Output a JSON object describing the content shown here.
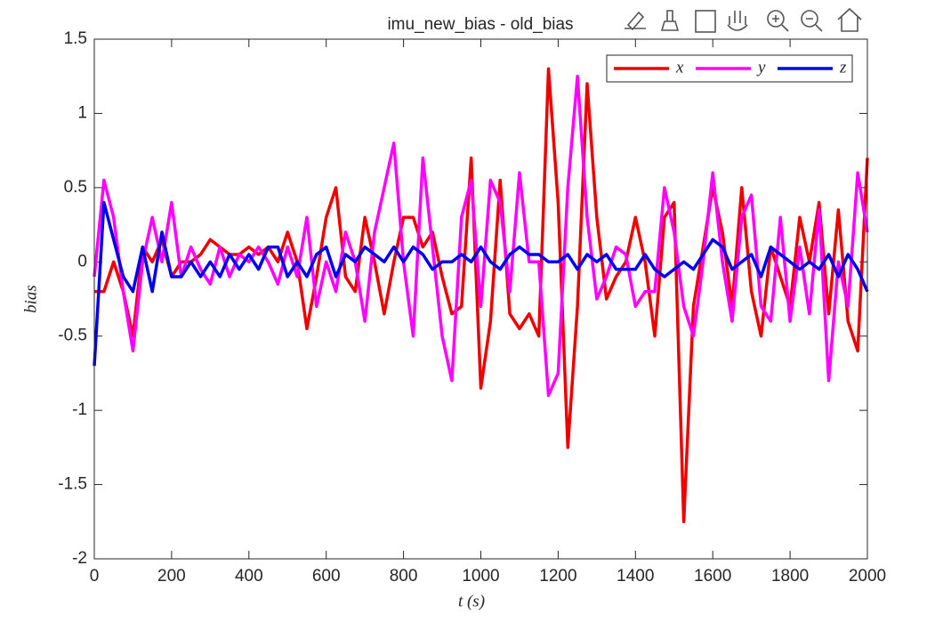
{
  "chart_data": {
    "type": "line",
    "title": "imu_new_bias - old_bias",
    "xlabel": "t (s)",
    "ylabel": "bias",
    "x": [
      0,
      25,
      50,
      75,
      100,
      125,
      150,
      175,
      200,
      225,
      250,
      275,
      300,
      325,
      350,
      375,
      400,
      425,
      450,
      475,
      500,
      525,
      550,
      575,
      600,
      625,
      650,
      675,
      700,
      725,
      750,
      775,
      800,
      825,
      850,
      875,
      900,
      925,
      950,
      975,
      1000,
      1025,
      1050,
      1075,
      1100,
      1125,
      1150,
      1175,
      1200,
      1225,
      1250,
      1275,
      1300,
      1325,
      1350,
      1375,
      1400,
      1425,
      1450,
      1475,
      1500,
      1525,
      1550,
      1575,
      1600,
      1625,
      1650,
      1675,
      1700,
      1725,
      1750,
      1775,
      1800,
      1825,
      1850,
      1875,
      1900,
      1925,
      1950,
      1975,
      2000
    ],
    "series": [
      {
        "name": "x",
        "color": "#ee0000",
        "values": [
          -0.2,
          -0.2,
          0.0,
          -0.2,
          -0.5,
          0.1,
          0.0,
          0.15,
          -0.1,
          0.0,
          0.0,
          0.05,
          0.15,
          0.1,
          0.05,
          0.05,
          0.1,
          0.05,
          0.1,
          0.0,
          0.2,
          0.0,
          -0.45,
          -0.1,
          0.3,
          0.5,
          -0.1,
          -0.2,
          0.3,
          0.0,
          -0.35,
          0.0,
          0.3,
          0.3,
          0.1,
          0.2,
          -0.1,
          -0.35,
          -0.3,
          0.7,
          -0.85,
          -0.4,
          0.55,
          -0.35,
          -0.45,
          -0.35,
          -0.5,
          1.3,
          0.4,
          -1.25,
          -0.3,
          1.2,
          0.3,
          -0.25,
          -0.1,
          0.0,
          0.3,
          0.0,
          -0.5,
          0.3,
          0.4,
          -1.75,
          -0.3,
          0.1,
          0.5,
          0.2,
          -0.3,
          0.5,
          -0.2,
          -0.5,
          0.1,
          -0.1,
          -0.3,
          0.3,
          0.0,
          0.4,
          -0.35,
          0.35,
          -0.4,
          -0.6,
          0.7
        ]
      },
      {
        "name": "y",
        "color": "#ff00ff",
        "values": [
          -0.1,
          0.55,
          0.3,
          -0.2,
          -0.6,
          0.0,
          0.3,
          0.0,
          0.4,
          -0.1,
          0.1,
          -0.05,
          -0.15,
          0.1,
          -0.1,
          0.05,
          0.0,
          0.1,
          0.0,
          -0.15,
          0.1,
          -0.1,
          0.3,
          -0.3,
          0.0,
          -0.2,
          0.2,
          0.0,
          -0.4,
          0.2,
          0.5,
          0.8,
          0.0,
          -0.5,
          0.7,
          0.1,
          -0.5,
          -0.8,
          0.3,
          0.55,
          -0.3,
          0.55,
          0.4,
          -0.2,
          0.6,
          0.0,
          0.0,
          -0.9,
          -0.75,
          0.5,
          1.25,
          0.3,
          -0.25,
          -0.1,
          0.1,
          0.05,
          -0.3,
          -0.2,
          -0.2,
          0.5,
          0.2,
          -0.3,
          -0.5,
          0.0,
          0.6,
          0.0,
          -0.4,
          0.3,
          0.45,
          -0.3,
          -0.4,
          0.3,
          -0.4,
          0.1,
          -0.35,
          0.35,
          -0.8,
          0.0,
          -0.3,
          0.6,
          0.2
        ]
      },
      {
        "name": "z",
        "color": "#0000ee",
        "values": [
          -0.7,
          0.4,
          0.15,
          -0.1,
          -0.2,
          0.1,
          -0.2,
          0.2,
          -0.1,
          -0.1,
          0.0,
          -0.1,
          0.0,
          -0.1,
          0.05,
          -0.05,
          0.05,
          -0.05,
          0.1,
          0.1,
          -0.1,
          0.0,
          -0.1,
          0.05,
          0.1,
          -0.1,
          0.05,
          0.0,
          0.1,
          0.05,
          0.0,
          0.1,
          0.0,
          0.1,
          0.05,
          -0.05,
          0.0,
          0.0,
          0.05,
          0.0,
          0.1,
          0.0,
          -0.05,
          0.05,
          0.1,
          0.05,
          0.05,
          0.0,
          0.0,
          0.05,
          -0.05,
          0.05,
          0.0,
          0.05,
          -0.05,
          -0.05,
          -0.05,
          0.05,
          -0.05,
          -0.1,
          -0.05,
          0.0,
          -0.05,
          0.05,
          0.15,
          0.1,
          -0.05,
          0.0,
          0.05,
          -0.1,
          0.1,
          0.05,
          0.0,
          -0.05,
          0.0,
          -0.05,
          0.05,
          -0.1,
          0.05,
          -0.05,
          -0.2
        ]
      }
    ],
    "xlim": [
      0,
      2000
    ],
    "xticks": [
      0,
      200,
      400,
      600,
      800,
      1000,
      1200,
      1400,
      1600,
      1800,
      2000
    ],
    "ylim": [
      -2,
      1.5
    ],
    "yticks": [
      -2,
      -1.5,
      -1,
      -0.5,
      0,
      0.5,
      1,
      1.5
    ],
    "grid": false,
    "legend": "northeast"
  }
}
